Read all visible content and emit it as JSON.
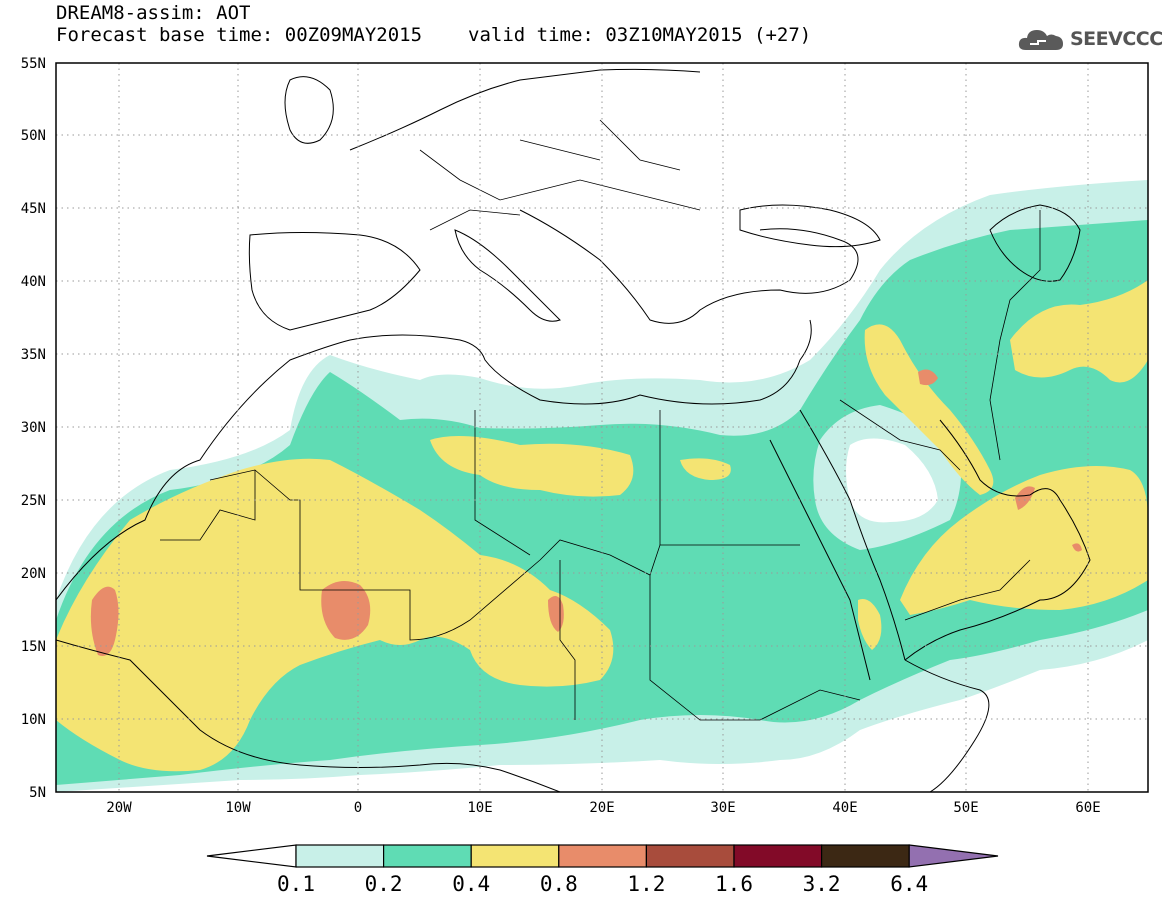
{
  "header": {
    "title": "DREAM8-assim: AOT",
    "base_time": "Forecast base time: 00Z09MAY2015",
    "valid_time": "valid time: 03Z10MAY2015 (+27)"
  },
  "logo": {
    "text": "SEEVCCC",
    "icon": "cloud-icon"
  },
  "map": {
    "region": {
      "lon_min": -25,
      "lon_max": 65,
      "lat_min": 5,
      "lat_max": 55
    },
    "lat_ticks": [
      "5N",
      "10N",
      "15N",
      "20N",
      "25N",
      "30N",
      "35N",
      "40N",
      "45N",
      "50N",
      "55N"
    ],
    "lon_ticks": [
      "20W",
      "10W",
      "0",
      "10E",
      "20E",
      "30E",
      "40E",
      "50E",
      "60E"
    ]
  },
  "colorbar": {
    "labels": [
      "0.1",
      "0.2",
      "0.4",
      "0.8",
      "1.2",
      "1.6",
      "3.2",
      "6.4"
    ],
    "colors": [
      "#ffffff",
      "#c8f0e8",
      "#5fdcb4",
      "#f4e473",
      "#e88c6a",
      "#a84c3c",
      "#820a28",
      "#3c2814",
      "#9370b0"
    ]
  },
  "colors": {
    "level_0_1": "#c8f0e8",
    "level_0_2": "#5fdcb4",
    "level_0_4": "#f4e473",
    "level_0_8": "#e88c6a"
  }
}
